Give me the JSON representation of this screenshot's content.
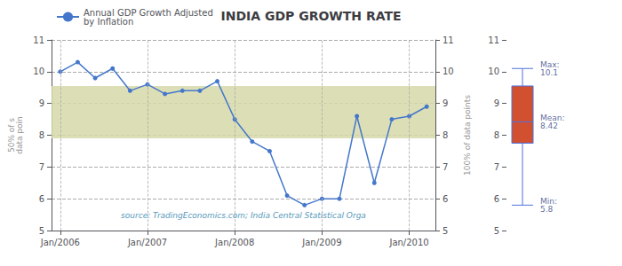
{
  "chart_data": [
    {
      "type": "line",
      "title": "INDIA GDP GROWTH RATE",
      "categories": [
        "Jan/2006",
        null,
        null,
        null,
        null,
        "Jan/2007",
        null,
        null,
        null,
        null,
        "Jan/2008",
        null,
        null,
        null,
        null,
        "Jan/2009",
        null,
        null,
        null,
        null,
        "Jan/2010",
        null
      ],
      "series": [
        {
          "name": "Annual GDP Growth Adjusted\nby Inflation",
          "color": "#4477cc",
          "marker": "circle",
          "values": [
            10.0,
            10.3,
            9.8,
            10.1,
            9.4,
            9.6,
            9.3,
            9.4,
            9.4,
            9.7,
            8.5,
            7.8,
            7.5,
            6.1,
            5.8,
            6.0,
            6.0,
            8.6,
            6.5,
            8.5,
            8.6,
            8.9
          ]
        }
      ],
      "ylim": [
        5,
        11
      ],
      "yticks": [
        5,
        6,
        7,
        8,
        9,
        10,
        11
      ],
      "y2lim": [
        5,
        11
      ],
      "y2ticks": [
        5,
        6,
        7,
        8,
        9,
        10,
        11
      ],
      "ylabel": "50% of s\ndata poin",
      "y2label": "100% of data points",
      "grid": true,
      "legend": "upper left",
      "bands": [
        {
          "from": 7.9,
          "to": 9.55,
          "color": "#d6d9a8"
        }
      ],
      "annotations": [
        "source: TradingEconomics.com; India Central Statistical Orga"
      ]
    },
    {
      "type": "box",
      "stats": {
        "min": 5.8,
        "q1": 7.75,
        "mean": 8.42,
        "q3": 9.55,
        "max": 10.1
      },
      "stat_labels": {
        "max": "Max:\n10.1",
        "mean": "Mean:\n8.42",
        "min": "Min:\n5.8"
      },
      "color": "#d05030",
      "ylim": [
        5,
        11
      ],
      "yticks": [
        5,
        6,
        7,
        8,
        9,
        10,
        11
      ]
    }
  ]
}
